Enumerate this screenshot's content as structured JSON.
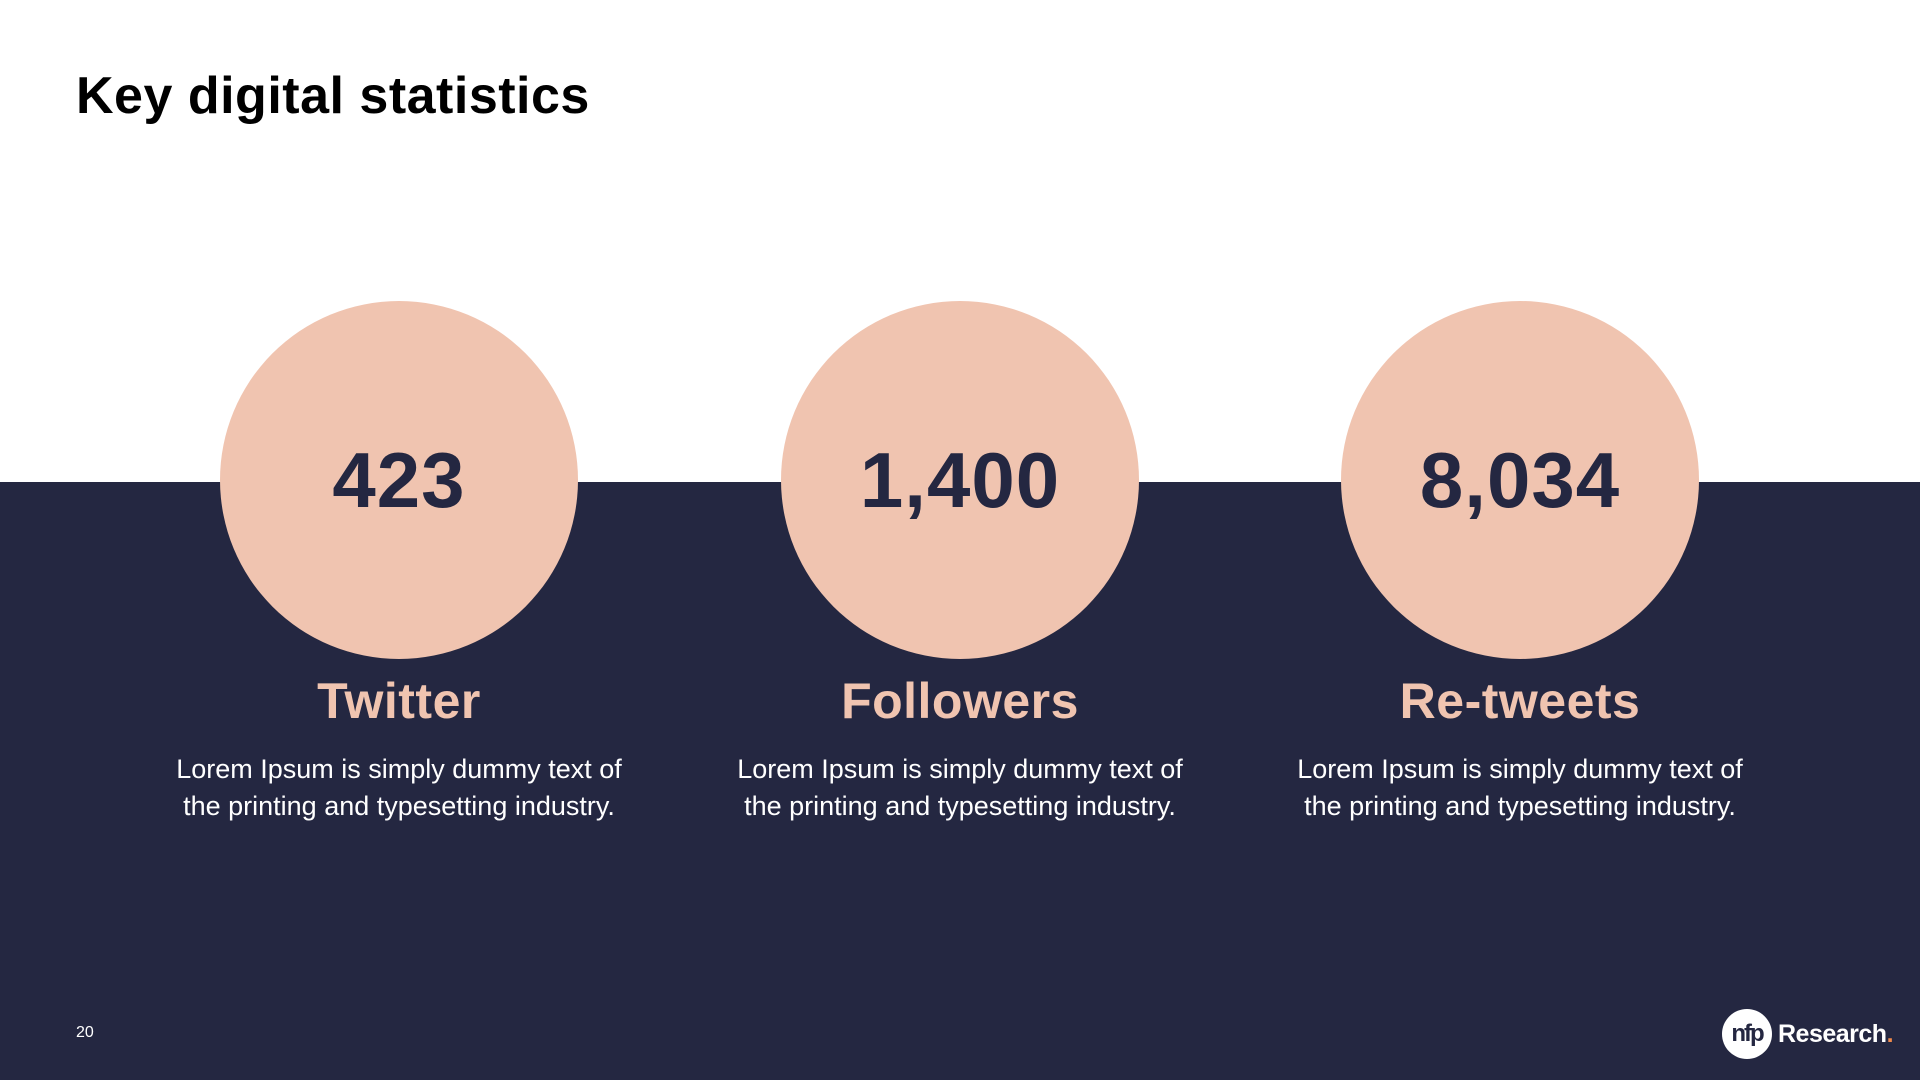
{
  "header": {
    "title": "Key digital statistics"
  },
  "stats": [
    {
      "value": "423",
      "label": "Twitter",
      "description": "Lorem Ipsum is simply dummy text of the printing and typesetting industry."
    },
    {
      "value": "1,400",
      "label": "Followers",
      "description": "Lorem Ipsum is simply dummy text of the printing and typesetting industry."
    },
    {
      "value": "8,034",
      "label": "Re-tweets",
      "description": "Lorem Ipsum is simply dummy text of the printing and typesetting industry."
    }
  ],
  "footer": {
    "page_number": "20",
    "logo": {
      "mark": "nfp",
      "name": "Research",
      "dot": "."
    }
  }
}
